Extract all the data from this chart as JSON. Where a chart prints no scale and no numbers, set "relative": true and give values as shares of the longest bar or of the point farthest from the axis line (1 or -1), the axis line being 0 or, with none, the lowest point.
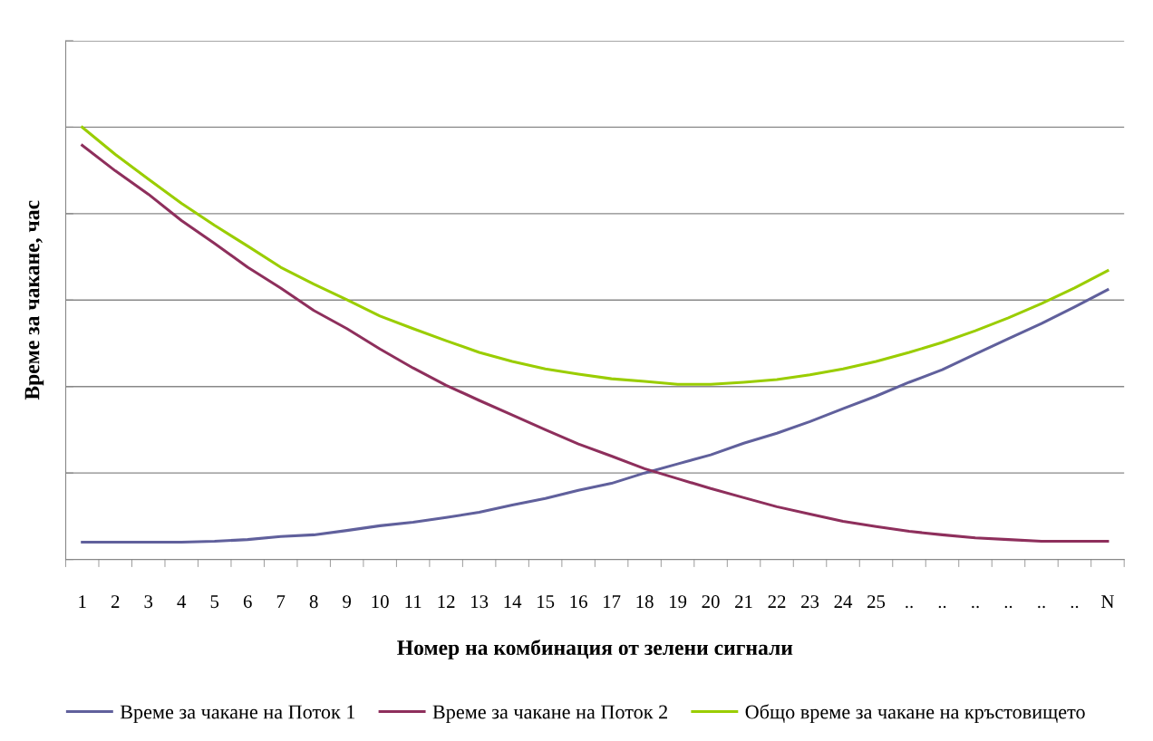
{
  "chart_data": {
    "type": "line",
    "relative": true,
    "xlabel": "Номер на комбинация от зелени сигнали",
    "ylabel": "Време за чакане, час",
    "categories": [
      "1",
      "2",
      "3",
      "4",
      "5",
      "6",
      "7",
      "8",
      "9",
      "10",
      "11",
      "12",
      "13",
      "14",
      "15",
      "16",
      "17",
      "18",
      "19",
      "20",
      "21",
      "22",
      "23",
      "24",
      "25",
      "..",
      "..",
      "..",
      "..",
      "..",
      "..",
      "N"
    ],
    "series": [
      {
        "name": "Време за чакане на Поток 1",
        "color": "#60609c",
        "values": [
          0.04,
          0.04,
          0.04,
          0.04,
          0.042,
          0.046,
          0.053,
          0.057,
          0.067,
          0.078,
          0.086,
          0.097,
          0.109,
          0.126,
          0.141,
          0.16,
          0.176,
          0.2,
          0.221,
          0.242,
          0.269,
          0.292,
          0.319,
          0.349,
          0.378,
          0.41,
          0.439,
          0.475,
          0.511,
          0.546,
          0.584,
          0.624
        ]
      },
      {
        "name": "Време за чакане на Поток 2",
        "color": "#8e2f5c",
        "values": [
          0.958,
          0.899,
          0.845,
          0.784,
          0.731,
          0.676,
          0.628,
          0.576,
          0.534,
          0.487,
          0.443,
          0.403,
          0.368,
          0.334,
          0.3,
          0.267,
          0.239,
          0.21,
          0.187,
          0.164,
          0.143,
          0.122,
          0.105,
          0.088,
          0.076,
          0.065,
          0.057,
          0.05,
          0.046,
          0.042,
          0.042,
          0.042
        ]
      },
      {
        "name": "Общо време за чакане на кръстовището",
        "color": "#9acd00",
        "values": [
          1.0,
          0.937,
          0.88,
          0.824,
          0.773,
          0.725,
          0.676,
          0.637,
          0.601,
          0.563,
          0.534,
          0.506,
          0.479,
          0.458,
          0.441,
          0.429,
          0.418,
          0.412,
          0.405,
          0.405,
          0.41,
          0.416,
          0.427,
          0.441,
          0.458,
          0.479,
          0.502,
          0.529,
          0.559,
          0.592,
          0.628,
          0.668
        ]
      }
    ],
    "grid": "y",
    "legend": "bottom",
    "marker": "none",
    "line_style": "solid"
  }
}
